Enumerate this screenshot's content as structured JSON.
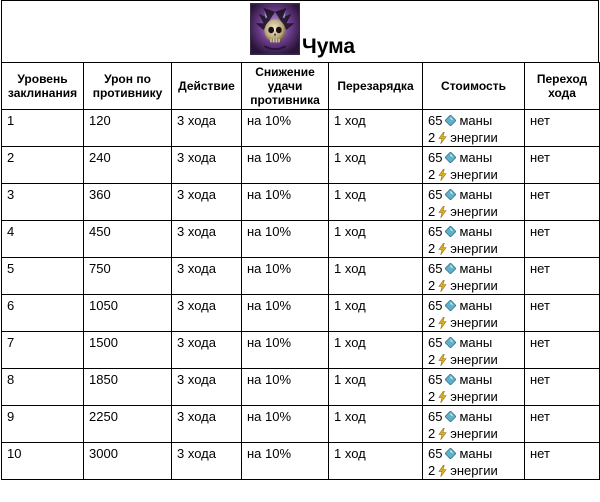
{
  "spell": {
    "name": "Чума",
    "icon": "skull-wings-icon"
  },
  "headers": [
    "Уровень заклинания",
    "Урон по противнику",
    "Действие",
    "Снижение удачи противника",
    "Перезарядка",
    "Стоимость",
    "Переход хода"
  ],
  "rows": [
    {
      "level": "1",
      "damage": "120",
      "action": "3 хода",
      "luck": "на 10%",
      "cooldown": "1 ход",
      "mana": "65",
      "mana_label": "маны",
      "energy": "2",
      "energy_label": "энергии",
      "turn": "нет"
    },
    {
      "level": "2",
      "damage": "240",
      "action": "3 хода",
      "luck": "на 10%",
      "cooldown": "1 ход",
      "mana": "65",
      "mana_label": "маны",
      "energy": "2",
      "energy_label": "энергии",
      "turn": "нет"
    },
    {
      "level": "3",
      "damage": "360",
      "action": "3 хода",
      "luck": "на 10%",
      "cooldown": "1 ход",
      "mana": "65",
      "mana_label": "маны",
      "energy": "2",
      "energy_label": "энергии",
      "turn": "нет"
    },
    {
      "level": "4",
      "damage": "450",
      "action": "3 хода",
      "luck": "на 10%",
      "cooldown": "1 ход",
      "mana": "65",
      "mana_label": "маны",
      "energy": "2",
      "energy_label": "энергии",
      "turn": "нет"
    },
    {
      "level": "5",
      "damage": "750",
      "action": "3 хода",
      "luck": "на 10%",
      "cooldown": "1 ход",
      "mana": "65",
      "mana_label": "маны",
      "energy": "2",
      "energy_label": "энергии",
      "turn": "нет"
    },
    {
      "level": "6",
      "damage": "1050",
      "action": "3 хода",
      "luck": "на 10%",
      "cooldown": "1 ход",
      "mana": "65",
      "mana_label": "маны",
      "energy": "2",
      "energy_label": "энергии",
      "turn": "нет"
    },
    {
      "level": "7",
      "damage": "1500",
      "action": "3 хода",
      "luck": "на 10%",
      "cooldown": "1 ход",
      "mana": "65",
      "mana_label": "маны",
      "energy": "2",
      "energy_label": "энергии",
      "turn": "нет"
    },
    {
      "level": "8",
      "damage": "1850",
      "action": "3 хода",
      "luck": "на 10%",
      "cooldown": "1 ход",
      "mana": "65",
      "mana_label": "маны",
      "energy": "2",
      "energy_label": "энергии",
      "turn": "нет"
    },
    {
      "level": "9",
      "damage": "2250",
      "action": "3 хода",
      "luck": "на 10%",
      "cooldown": "1 ход",
      "mana": "65",
      "mana_label": "маны",
      "energy": "2",
      "energy_label": "энергии",
      "turn": "нет"
    },
    {
      "level": "10",
      "damage": "3000",
      "action": "3 хода",
      "luck": "на 10%",
      "cooldown": "1 ход",
      "mana": "65",
      "mana_label": "маны",
      "energy": "2",
      "energy_label": "энергии",
      "turn": "нет"
    }
  ],
  "colors": {
    "gem": "#5fb0c8",
    "bolt": "#e0b020",
    "icon_bg": "#6a3c8a"
  }
}
